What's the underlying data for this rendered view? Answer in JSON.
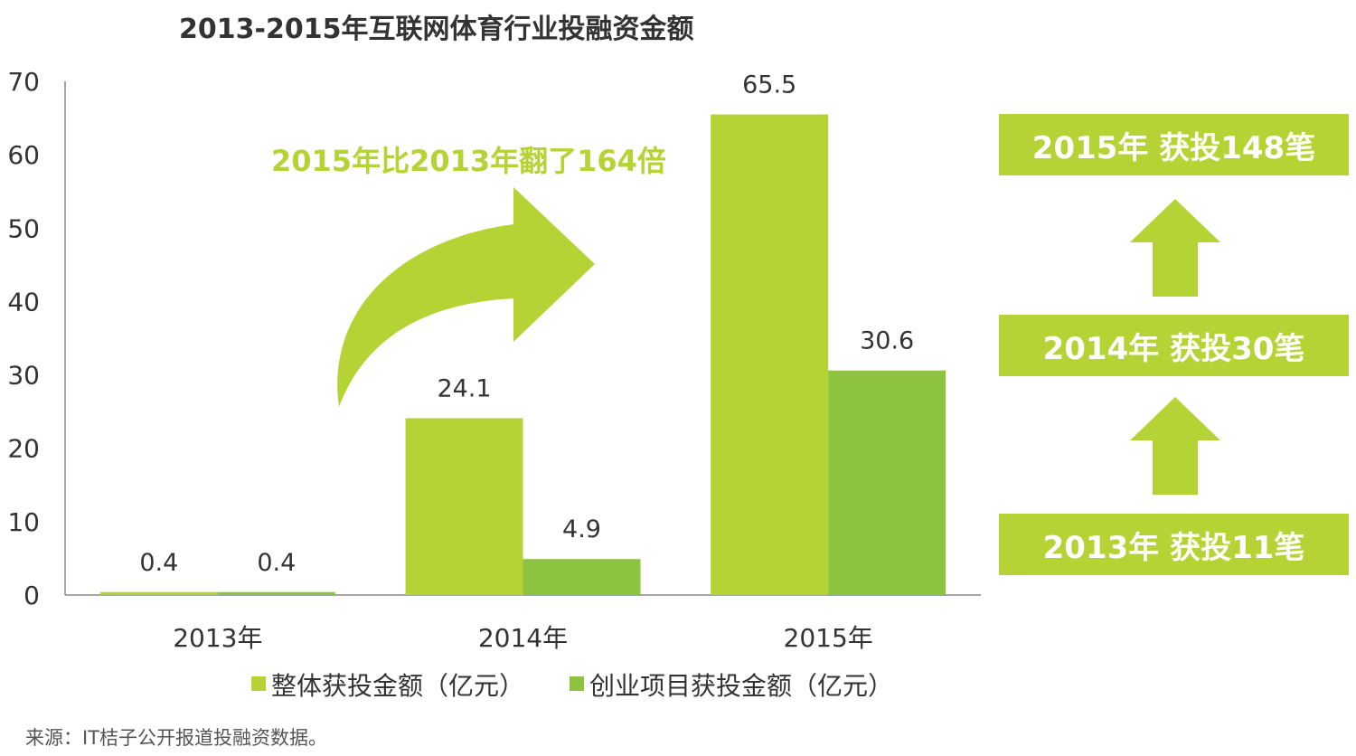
{
  "chart_data": {
    "type": "bar",
    "title": "2013-2015年互联网体育行业投融资金额",
    "categories": [
      "2013年",
      "2014年",
      "2015年"
    ],
    "series": [
      {
        "name": "整体获投金额（亿元）",
        "values": [
          0.4,
          24.1,
          65.5
        ],
        "color": "#b5d334"
      },
      {
        "name": "创业项目获投金额（亿元）",
        "values": [
          0.4,
          4.9,
          30.6
        ],
        "color": "#8dc33f"
      }
    ],
    "data_labels": [
      [
        "0.4",
        "24.1",
        "65.5"
      ],
      [
        "0.4",
        "4.9",
        "30.6"
      ]
    ],
    "ylim": [
      0,
      70
    ],
    "yticks": [
      "0",
      "10",
      "20",
      "30",
      "40",
      "50",
      "60",
      "70"
    ],
    "xlabel": "",
    "ylabel": "",
    "grid": false,
    "legend_position": "bottom",
    "annotation": "2015年比2013年翻了164倍",
    "source": "来源：IT桔子公开报道投融资数据。"
  },
  "side_panel": {
    "items": [
      {
        "label": "2015年 获投148笔"
      },
      {
        "label": "2014年 获投30笔"
      },
      {
        "label": "2013年 获投11笔"
      }
    ]
  },
  "colors": {
    "accent": "#b5d334",
    "secondary": "#8dc33f",
    "text": "#333333"
  }
}
